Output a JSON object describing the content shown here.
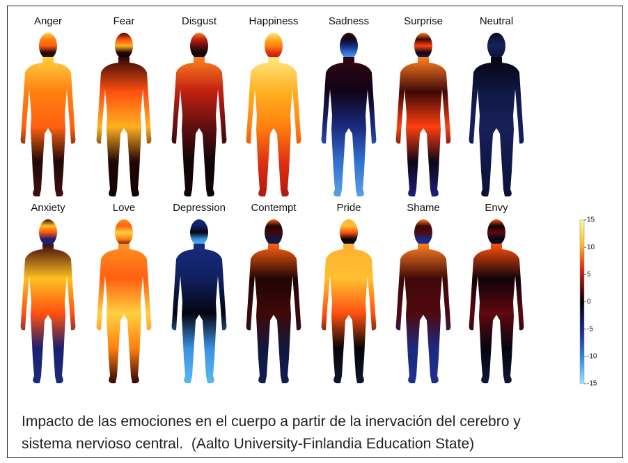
{
  "figure": {
    "rows": [
      [
        "Anger",
        "Fear",
        "Disgust",
        "Happiness",
        "Sadness",
        "Surprise",
        "Neutral"
      ],
      [
        "Anxiety",
        "Love",
        "Depression",
        "Contempt",
        "Pride",
        "Shame",
        "Envy"
      ]
    ],
    "colorbar": {
      "lim": [
        -15,
        15
      ],
      "ticks": [
        15,
        10,
        5,
        0,
        -5,
        -10,
        -15
      ]
    }
  },
  "caption": {
    "lines": [
      "Impacto de las emociones en el cuerpo a partir de la inervación del cerebro y",
      "sistema nervioso central.  (Aalto University-Finlandia Education State)"
    ]
  }
}
